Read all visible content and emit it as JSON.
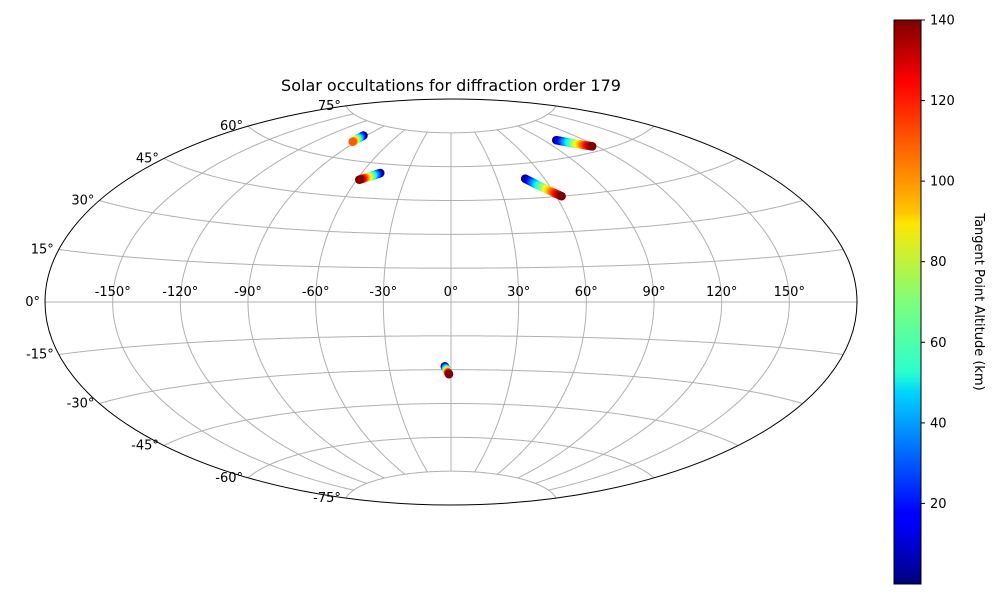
{
  "chart_data": {
    "type": "scatter",
    "projection": "aitoff",
    "title": "Solar occultations for diffraction order 179",
    "grid": true,
    "longitude_ticks": [
      "-150°",
      "-120°",
      "-90°",
      "-60°",
      "-30°",
      "0°",
      "30°",
      "60°",
      "90°",
      "120°",
      "150°"
    ],
    "latitude_ticks": [
      "75°",
      "60°",
      "45°",
      "30°",
      "15°",
      "0°",
      "-15°",
      "-30°",
      "-45°",
      "-60°",
      "-75°"
    ],
    "colorbar": {
      "label": "Tangent Point Altitude (km)",
      "ticks": [
        "20",
        "40",
        "60",
        "80",
        "100",
        "120",
        "140"
      ],
      "range": [
        0,
        140
      ],
      "colormap": "jet"
    },
    "occultations": [
      {
        "start_lon": -92.5,
        "start_lat": 70.0,
        "end_lon": -92.5,
        "end_lat": 67.0,
        "alt_start": 0,
        "alt_end": 110,
        "n": 10
      },
      {
        "start_lon": -48.0,
        "start_lat": 56.0,
        "end_lon": -58.5,
        "end_lat": 52.5,
        "alt_start": 0,
        "alt_end": 140,
        "n": 28
      },
      {
        "start_lon": 48.0,
        "start_lat": 53.5,
        "end_lon": 63.0,
        "end_lat": 45.0,
        "alt_start": 0,
        "alt_end": 140,
        "n": 30
      },
      {
        "start_lon": 100.0,
        "start_lat": 67.0,
        "end_lon": 117.0,
        "end_lat": 62.0,
        "alt_start": 0,
        "alt_end": 140,
        "n": 30
      },
      {
        "start_lon": -3.0,
        "start_lat": -28.5,
        "end_lon": -1.0,
        "end_lat": -32.0,
        "alt_start": 0,
        "alt_end": 140,
        "n": 14
      }
    ]
  }
}
